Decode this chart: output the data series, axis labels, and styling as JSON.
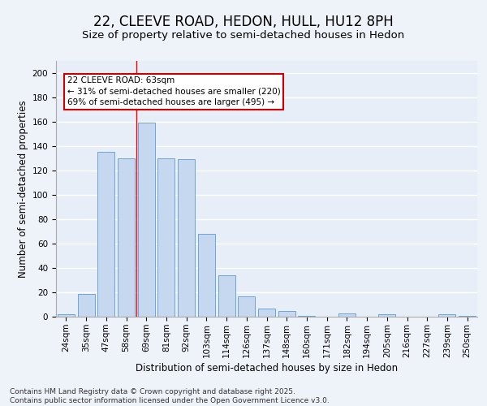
{
  "title_line1": "22, CLEEVE ROAD, HEDON, HULL, HU12 8PH",
  "title_line2": "Size of property relative to semi-detached houses in Hedon",
  "xlabel": "Distribution of semi-detached houses by size in Hedon",
  "ylabel": "Number of semi-detached properties",
  "categories": [
    "24sqm",
    "35sqm",
    "47sqm",
    "58sqm",
    "69sqm",
    "81sqm",
    "92sqm",
    "103sqm",
    "114sqm",
    "126sqm",
    "137sqm",
    "148sqm",
    "160sqm",
    "171sqm",
    "182sqm",
    "194sqm",
    "205sqm",
    "216sqm",
    "227sqm",
    "239sqm",
    "250sqm"
  ],
  "values": [
    2,
    19,
    135,
    130,
    159,
    130,
    129,
    68,
    34,
    17,
    7,
    5,
    1,
    0,
    3,
    0,
    2,
    0,
    0,
    2,
    1
  ],
  "bar_color": "#c5d8f0",
  "bar_edge_color": "#5b9bd5",
  "bg_color": "#e8eef7",
  "grid_color": "#ffffff",
  "annotation_box_text": "22 CLEEVE ROAD: 63sqm\n← 31% of semi-detached houses are smaller (220)\n69% of semi-detached houses are larger (495) →",
  "annotation_box_color": "#cc0000",
  "red_line_x": 3.5,
  "ylim": [
    0,
    210
  ],
  "yticks": [
    0,
    20,
    40,
    60,
    80,
    100,
    120,
    140,
    160,
    180,
    200
  ],
  "footer_text": "Contains HM Land Registry data © Crown copyright and database right 2025.\nContains public sector information licensed under the Open Government Licence v3.0.",
  "title_fontsize": 12,
  "subtitle_fontsize": 9.5,
  "axis_label_fontsize": 8.5,
  "tick_fontsize": 7.5,
  "annotation_fontsize": 7.5,
  "footer_fontsize": 6.5
}
